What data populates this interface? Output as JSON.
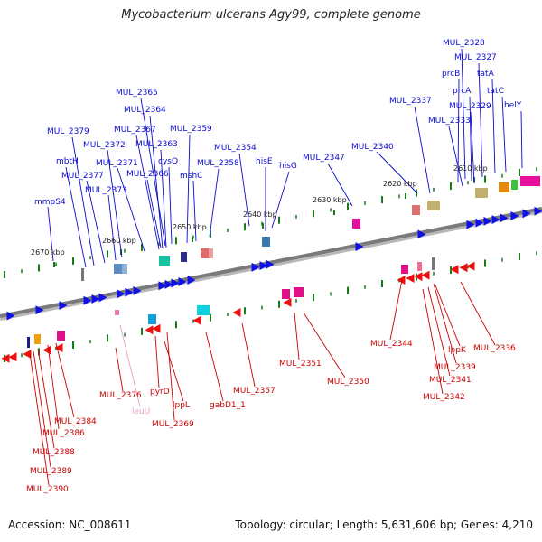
{
  "title": "Mycobacterium ulcerans Agy99, complete genome",
  "footer": {
    "accession": "Accession: NC_008611",
    "summary": "Topology: circular; Length: 5,631,606 bp; Genes: 4,210"
  },
  "colors": {
    "top_label": "#0a0ad0",
    "bottom_label": "#cc0000",
    "leuU_label": "#e8a0c8",
    "backbone": "#8a8a8a",
    "tick": "#1a7a1a"
  },
  "kbp_ticks": [
    "2670 kbp",
    "2660 kbp",
    "2650 kbp",
    "2640 kbp",
    "2630 kbp",
    "2620 kbp",
    "2610 kbp"
  ],
  "top_labels": [
    "MUL_2328",
    "MUL_2327",
    "prcB",
    "tatA",
    "prcA",
    "tatC",
    "MUL_2329",
    "MUL_2333",
    "helY",
    "MUL_2337",
    "MUL_2340",
    "MUL_2347",
    "hisG",
    "hisE",
    "MUL_2354",
    "MUL_2358",
    "mshC",
    "MUL_2359",
    "cysQ",
    "MUL_2363",
    "MUL_2366",
    "MUL_2367",
    "MUL_2364",
    "MUL_2365",
    "MUL_2371",
    "MUL_2372",
    "MUL_2373",
    "MUL_2377",
    "mbtH",
    "MUL_2379",
    "mmpS4"
  ],
  "bottom_labels": [
    "MUL_2336",
    "lppK",
    "MUL_2339",
    "MUL_2341",
    "MUL_2342",
    "MUL_2344",
    "MUL_2350",
    "MUL_2351",
    "MUL_2357",
    "gabD1_1",
    "MUL_2369",
    "lppL",
    "pyrD",
    "leuU",
    "MUL_2376",
    "MUL_2384",
    "MUL_2386",
    "MUL_2388",
    "MUL_2389",
    "MUL_2390"
  ]
}
